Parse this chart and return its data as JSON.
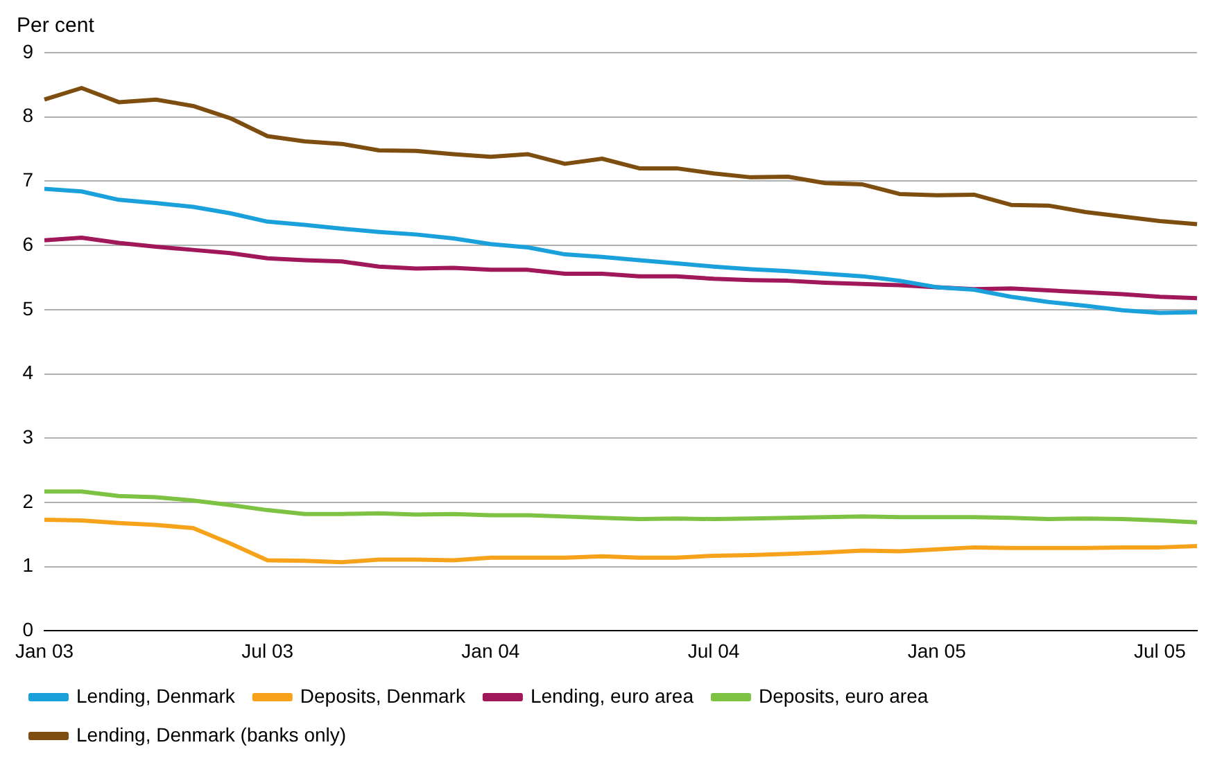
{
  "chart_data": {
    "type": "line",
    "ylabel": "Per cent",
    "categories": [
      "Jan 03",
      null,
      null,
      null,
      null,
      null,
      "Jul 03",
      null,
      null,
      null,
      null,
      null,
      "Jan 04",
      null,
      null,
      null,
      null,
      null,
      "Jul 04",
      null,
      null,
      null,
      null,
      null,
      "Jan 05",
      null,
      null,
      null,
      null,
      null,
      "Jul 05",
      null
    ],
    "series": [
      {
        "name": "Lending, Denmark",
        "color": "#1aa1dc",
        "values": [
          6.88,
          6.84,
          6.71,
          6.66,
          6.6,
          6.5,
          6.37,
          6.32,
          6.26,
          6.21,
          6.17,
          6.11,
          6.02,
          5.97,
          5.86,
          5.82,
          5.77,
          5.72,
          5.67,
          5.63,
          5.6,
          5.56,
          5.52,
          5.45,
          5.35,
          5.31,
          5.2,
          5.12,
          5.06,
          4.99,
          4.95,
          4.96
        ]
      },
      {
        "name": "Deposits, Denmark",
        "color": "#f7a21b",
        "values": [
          1.73,
          1.72,
          1.68,
          1.65,
          1.6,
          1.36,
          1.1,
          1.09,
          1.07,
          1.11,
          1.11,
          1.1,
          1.14,
          1.14,
          1.14,
          1.16,
          1.14,
          1.14,
          1.17,
          1.18,
          1.2,
          1.22,
          1.25,
          1.24,
          1.27,
          1.3,
          1.29,
          1.29,
          1.29,
          1.3,
          1.3,
          1.32
        ]
      },
      {
        "name": "Lending, euro area",
        "color": "#a0175a",
        "values": [
          6.08,
          6.12,
          6.04,
          5.98,
          5.93,
          5.88,
          5.8,
          5.77,
          5.75,
          5.67,
          5.64,
          5.65,
          5.62,
          5.62,
          5.56,
          5.56,
          5.52,
          5.52,
          5.48,
          5.46,
          5.45,
          5.42,
          5.4,
          5.38,
          5.35,
          5.32,
          5.33,
          5.3,
          5.27,
          5.24,
          5.2,
          5.18
        ]
      },
      {
        "name": "Deposits, euro area",
        "color": "#7dc242",
        "values": [
          2.17,
          2.17,
          2.1,
          2.08,
          2.03,
          1.96,
          1.88,
          1.82,
          1.82,
          1.83,
          1.81,
          1.82,
          1.8,
          1.8,
          1.78,
          1.76,
          1.74,
          1.75,
          1.74,
          1.75,
          1.76,
          1.77,
          1.78,
          1.77,
          1.77,
          1.77,
          1.76,
          1.74,
          1.75,
          1.74,
          1.72,
          1.69
        ]
      },
      {
        "name": "Lending, Denmark (banks only)",
        "color": "#7d4e0f",
        "values": [
          8.27,
          8.45,
          8.23,
          8.27,
          8.17,
          7.98,
          7.7,
          7.62,
          7.58,
          7.48,
          7.47,
          7.42,
          7.38,
          7.42,
          7.27,
          7.35,
          7.2,
          7.2,
          7.12,
          7.06,
          7.07,
          6.97,
          6.95,
          6.8,
          6.78,
          6.79,
          6.63,
          6.62,
          6.52,
          6.45,
          6.38,
          6.33
        ]
      }
    ],
    "ylim": [
      0,
      9
    ],
    "yticks": [
      0,
      1,
      2,
      3,
      4,
      5,
      6,
      7,
      8,
      9
    ],
    "grid": "y",
    "legend": "bottom",
    "marker": "none",
    "line_style": "solid"
  }
}
